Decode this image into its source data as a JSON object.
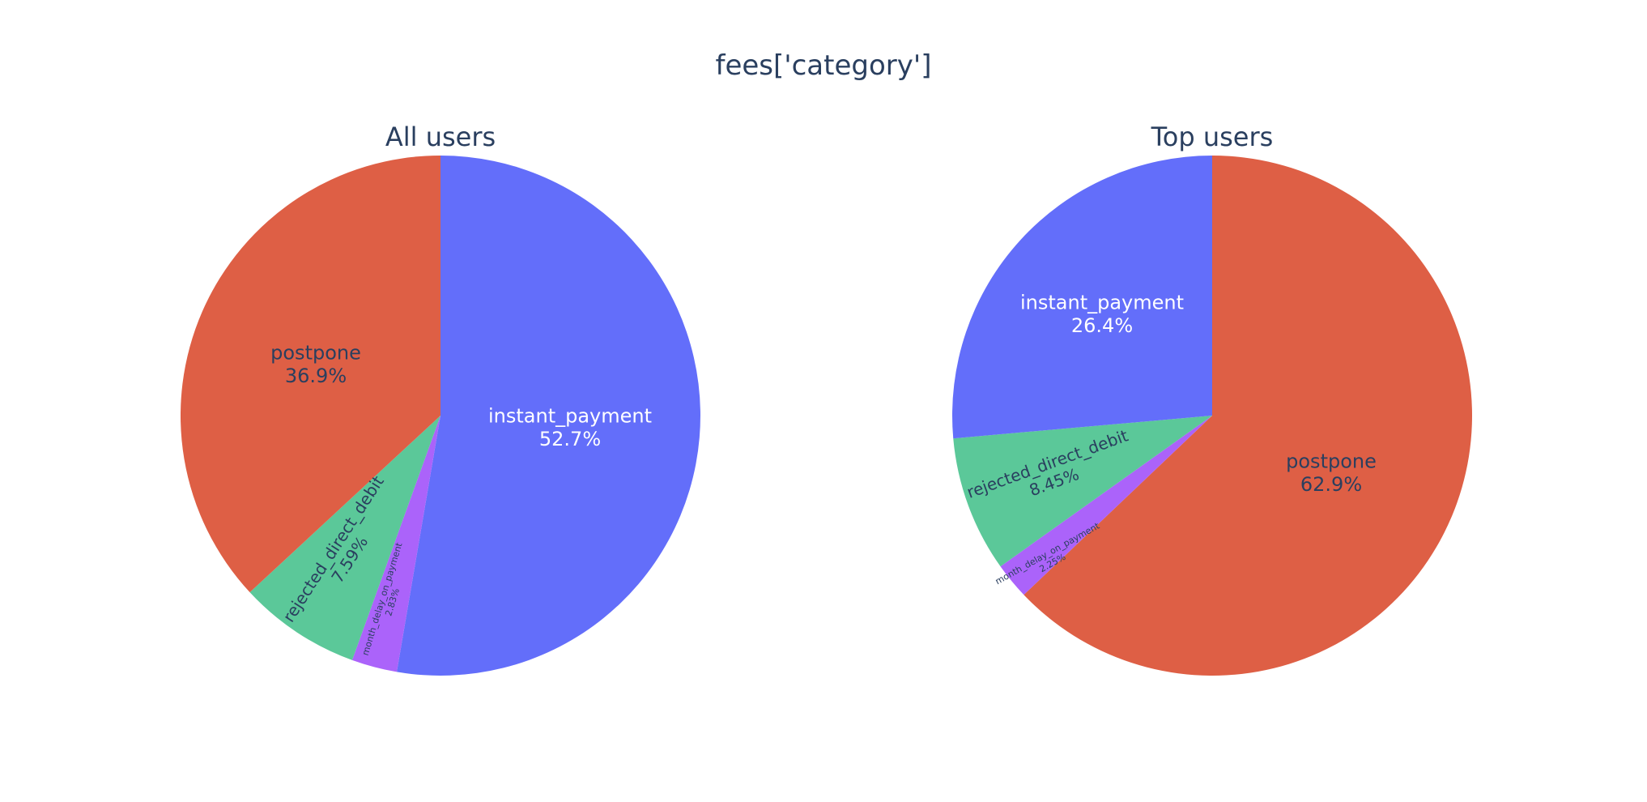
{
  "figure": {
    "title": "fees['category']"
  },
  "chart_data": [
    {
      "type": "pie",
      "title": "All users",
      "direction": "clockwise",
      "start": "top",
      "slices": [
        {
          "label": "instant_payment",
          "value": 52.7,
          "text": "52.7%",
          "color": "#636efa",
          "text_color": "#ffffff"
        },
        {
          "label": "month_delay_on_payment",
          "value": 2.83,
          "text": "2.83%",
          "color": "#ab63fa",
          "text_color": "#2a3f5f"
        },
        {
          "label": "rejected_direct_debit",
          "value": 7.59,
          "text": "7.59%",
          "color": "#5bc899",
          "text_color": "#2a3f5f"
        },
        {
          "label": "postpone",
          "value": 36.9,
          "text": "36.9%",
          "color": "#de5f45",
          "text_color": "#2a3f5f"
        }
      ]
    },
    {
      "type": "pie",
      "title": "Top users",
      "direction": "clockwise",
      "start": "top",
      "slices": [
        {
          "label": "postpone",
          "value": 62.9,
          "text": "62.9%",
          "color": "#de5f45",
          "text_color": "#2a3f5f"
        },
        {
          "label": "month_delay_on_payment",
          "value": 2.25,
          "text": "2.25%",
          "color": "#ab63fa",
          "text_color": "#2a3f5f"
        },
        {
          "label": "rejected_direct_debit",
          "value": 8.45,
          "text": "8.45%",
          "color": "#5bc899",
          "text_color": "#2a3f5f"
        },
        {
          "label": "instant_payment",
          "value": 26.4,
          "text": "26.4%",
          "color": "#636efa",
          "text_color": "#ffffff"
        }
      ]
    }
  ]
}
